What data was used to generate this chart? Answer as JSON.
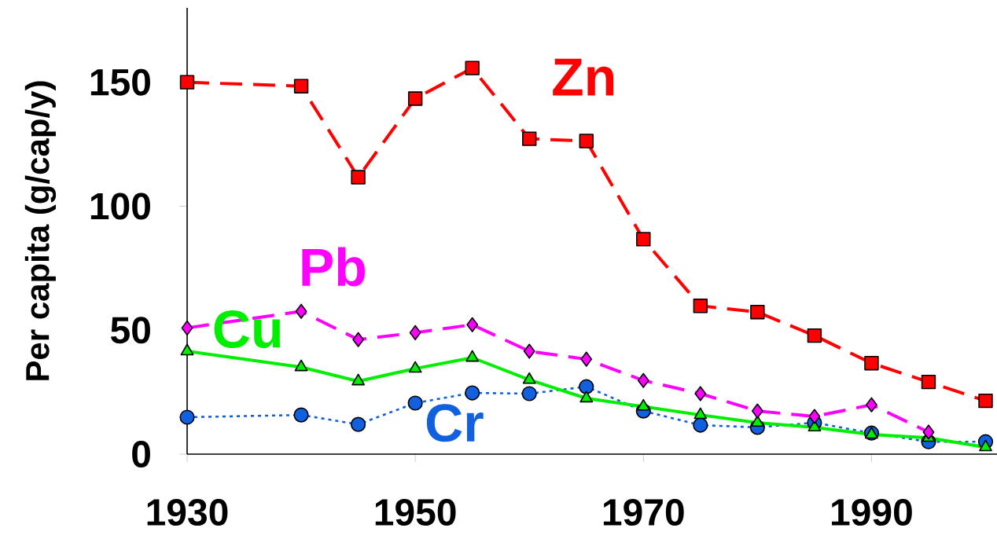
{
  "chart_data": {
    "type": "line",
    "ylabel": "Per capita (g/cap/y)",
    "x": [
      1930,
      1940,
      1945,
      1950,
      1955,
      1960,
      1965,
      1970,
      1975,
      1980,
      1985,
      1990,
      1995,
      2000
    ],
    "xlim": [
      1930,
      2001
    ],
    "ylim": [
      0,
      180
    ],
    "xticks": [
      1930,
      1950,
      1970,
      1990
    ],
    "yticks": [
      0,
      50,
      100,
      150
    ],
    "grid": false,
    "series": [
      {
        "name": "Zn",
        "color": "#ff0000",
        "marker": "square",
        "line_style": "dashed",
        "values": [
          150,
          148.4,
          111.7,
          143.4,
          155.7,
          127.2,
          126.3,
          86.7,
          59.8,
          57.3,
          47.8,
          36.7,
          29.1,
          21.5
        ]
      },
      {
        "name": "Pb",
        "color": "#ff00ff",
        "marker": "diamond",
        "line_style": "dashed",
        "values": [
          50.9,
          57.6,
          46.2,
          49,
          52.2,
          41.5,
          38.3,
          29.7,
          24.4,
          17.4,
          15.2,
          19.9,
          8.9,
          null
        ]
      },
      {
        "name": "Cu",
        "color": "#00ee00",
        "marker": "triangle",
        "line_style": "solid",
        "values": [
          41.5,
          35.1,
          29.4,
          34.5,
          38.9,
          30,
          22.5,
          19.2,
          15.8,
          12.7,
          10.8,
          7.9,
          6.6,
          2.8
        ]
      },
      {
        "name": "Cr",
        "color": "#1060e0",
        "marker": "circle",
        "line_style": "dotted",
        "values": [
          14.9,
          15.8,
          12,
          20.6,
          24.7,
          24.4,
          27.2,
          17.4,
          11.7,
          10.8,
          12.7,
          8.5,
          5,
          5
        ]
      }
    ]
  }
}
